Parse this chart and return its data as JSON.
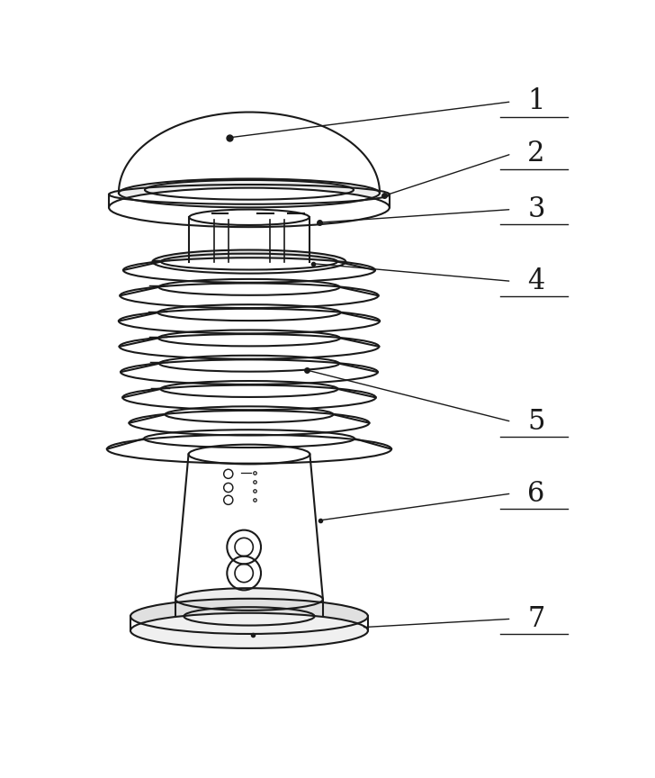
{
  "bg_color": "#ffffff",
  "line_color": "#1a1a1a",
  "label_color": "#1a1a1a",
  "labels": [
    "1",
    "2",
    "3",
    "4",
    "5",
    "6",
    "7"
  ],
  "label_fontsize": 22,
  "figsize": [
    7.28,
    8.64
  ],
  "dpi": 100
}
